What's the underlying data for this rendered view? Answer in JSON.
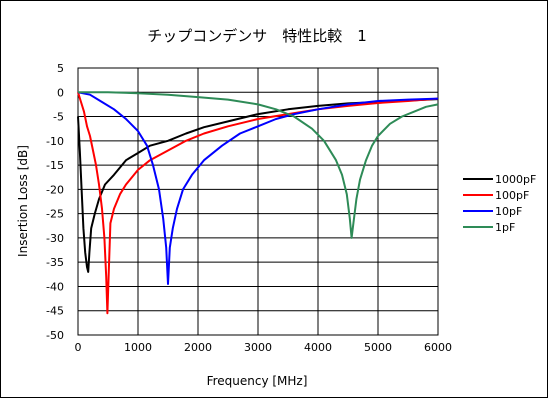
{
  "chart_data": {
    "type": "line",
    "title": "チップコンデンサ　特性比較　1",
    "xlabel": "Frequency [MHz]",
    "ylabel": "Insertion Loss [dB]",
    "xlim": [
      0,
      6000
    ],
    "ylim": [
      -50,
      5
    ],
    "x_ticks": [
      0,
      1000,
      2000,
      3000,
      4000,
      5000,
      6000
    ],
    "y_ticks": [
      5,
      0,
      -5,
      -10,
      -15,
      -20,
      -25,
      -30,
      -35,
      -40,
      -45,
      -50
    ],
    "grid": true,
    "legend_position": "right",
    "series": [
      {
        "name": "1000pF",
        "color": "#000000",
        "points": [
          [
            0,
            -5
          ],
          [
            30,
            -12
          ],
          [
            60,
            -20
          ],
          [
            90,
            -28
          ],
          [
            120,
            -33
          ],
          [
            150,
            -36
          ],
          [
            170,
            -37
          ],
          [
            190,
            -33
          ],
          [
            220,
            -28
          ],
          [
            280,
            -25
          ],
          [
            350,
            -22
          ],
          [
            450,
            -19
          ],
          [
            600,
            -17
          ],
          [
            800,
            -14
          ],
          [
            1000,
            -12.5
          ],
          [
            1200,
            -11
          ],
          [
            1500,
            -10
          ],
          [
            1800,
            -8.5
          ],
          [
            2100,
            -7.2
          ],
          [
            2500,
            -6
          ],
          [
            3000,
            -4.5
          ],
          [
            3500,
            -3.5
          ],
          [
            4000,
            -2.8
          ],
          [
            4500,
            -2.3
          ],
          [
            5000,
            -2
          ],
          [
            5500,
            -1.7
          ],
          [
            6000,
            -1.4
          ]
        ]
      },
      {
        "name": "100pF",
        "color": "#ff0000",
        "points": [
          [
            0,
            0
          ],
          [
            50,
            -2
          ],
          [
            100,
            -4
          ],
          [
            150,
            -7
          ],
          [
            200,
            -9
          ],
          [
            250,
            -12
          ],
          [
            300,
            -15
          ],
          [
            350,
            -19
          ],
          [
            400,
            -24
          ],
          [
            440,
            -30
          ],
          [
            470,
            -38
          ],
          [
            490,
            -45.5
          ],
          [
            510,
            -38
          ],
          [
            540,
            -27
          ],
          [
            600,
            -24
          ],
          [
            700,
            -21
          ],
          [
            800,
            -19
          ],
          [
            1000,
            -16
          ],
          [
            1200,
            -14
          ],
          [
            1500,
            -12
          ],
          [
            1800,
            -10
          ],
          [
            2100,
            -8.5
          ],
          [
            2500,
            -7
          ],
          [
            3000,
            -5.5
          ],
          [
            3500,
            -4.5
          ],
          [
            4000,
            -3.5
          ],
          [
            4500,
            -2.8
          ],
          [
            5000,
            -2.2
          ],
          [
            5500,
            -1.8
          ],
          [
            6000,
            -1.3
          ]
        ]
      },
      {
        "name": "10pF",
        "color": "#0000ff",
        "points": [
          [
            0,
            0
          ],
          [
            200,
            -0.5
          ],
          [
            400,
            -2
          ],
          [
            600,
            -3.5
          ],
          [
            800,
            -5.5
          ],
          [
            1000,
            -8
          ],
          [
            1150,
            -11
          ],
          [
            1250,
            -15
          ],
          [
            1350,
            -20
          ],
          [
            1420,
            -26
          ],
          [
            1470,
            -32
          ],
          [
            1500,
            -39.5
          ],
          [
            1530,
            -32
          ],
          [
            1580,
            -28
          ],
          [
            1650,
            -24
          ],
          [
            1750,
            -20
          ],
          [
            1900,
            -17
          ],
          [
            2100,
            -14
          ],
          [
            2400,
            -11
          ],
          [
            2700,
            -8.5
          ],
          [
            3000,
            -7
          ],
          [
            3300,
            -5.5
          ],
          [
            3600,
            -4.5
          ],
          [
            4000,
            -3.5
          ],
          [
            4500,
            -2.5
          ],
          [
            5000,
            -1.8
          ],
          [
            5500,
            -1.5
          ],
          [
            6000,
            -1.3
          ]
        ]
      },
      {
        "name": "1pF",
        "color": "#2e8b57",
        "points": [
          [
            0,
            0
          ],
          [
            500,
            0
          ],
          [
            1000,
            -0.2
          ],
          [
            1500,
            -0.5
          ],
          [
            2000,
            -1
          ],
          [
            2500,
            -1.5
          ],
          [
            3000,
            -2.5
          ],
          [
            3300,
            -3.5
          ],
          [
            3600,
            -5
          ],
          [
            3900,
            -7.5
          ],
          [
            4100,
            -10
          ],
          [
            4300,
            -14
          ],
          [
            4400,
            -17
          ],
          [
            4480,
            -21
          ],
          [
            4530,
            -26
          ],
          [
            4560,
            -30
          ],
          [
            4590,
            -27
          ],
          [
            4640,
            -22
          ],
          [
            4700,
            -18
          ],
          [
            4800,
            -14
          ],
          [
            4900,
            -11
          ],
          [
            5000,
            -9
          ],
          [
            5200,
            -6.5
          ],
          [
            5400,
            -5
          ],
          [
            5600,
            -4
          ],
          [
            5800,
            -3
          ],
          [
            6000,
            -2.5
          ]
        ]
      }
    ]
  }
}
